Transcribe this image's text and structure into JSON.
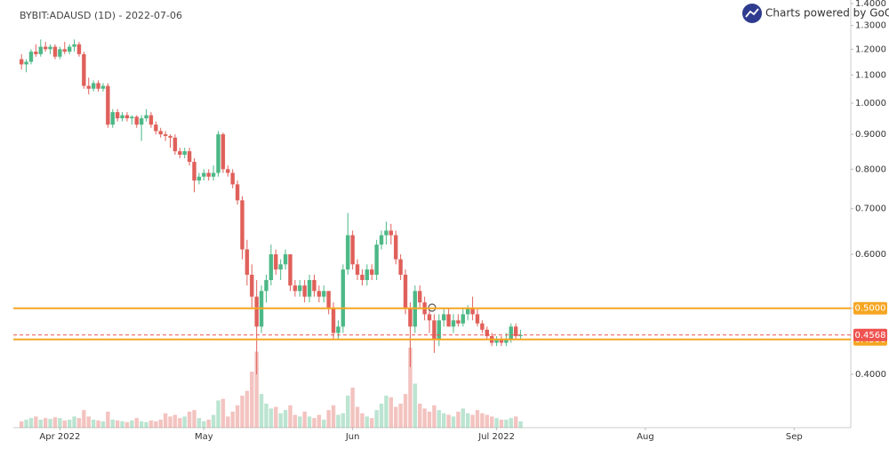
{
  "chart_data": {
    "type": "candlestick",
    "title": "BYBIT:ADAUSD (1D) - 2022-07-06",
    "credit": "Charts powered by GoCharting",
    "log_scale": true,
    "up_color": "#4cb886",
    "down_color": "#e0605a",
    "ylim": [
      0.334,
      1.417
    ],
    "yticks": [
      {
        "value": 0.4,
        "label": "0.4000"
      },
      {
        "value": 0.5,
        "label": "0.5000"
      },
      {
        "value": 0.6,
        "label": "0.6000"
      },
      {
        "value": 0.7,
        "label": "0.7000"
      },
      {
        "value": 0.8,
        "label": "0.8000"
      },
      {
        "value": 0.9,
        "label": "0.9000"
      },
      {
        "value": 1,
        "label": "1.0000"
      },
      {
        "value": 1.1,
        "label": "1.1000"
      },
      {
        "value": 1.2,
        "label": "1.2000"
      },
      {
        "value": 1.3,
        "label": "1.3000"
      },
      {
        "value": 1.4,
        "label": "1.4000"
      }
    ],
    "xlim": [
      -1.7,
      172.8
    ],
    "xticks": [
      {
        "value": 8,
        "label": "Apr 2022"
      },
      {
        "value": 38,
        "label": "May"
      },
      {
        "value": 69,
        "label": "Jun"
      },
      {
        "value": 99,
        "label": "Jul 2022"
      },
      {
        "value": 130,
        "label": "Aug"
      },
      {
        "value": 161,
        "label": "Sep"
      }
    ],
    "levels": [
      {
        "value": 0.5,
        "label": "0.5000",
        "color": "#f5a623",
        "style": "solid"
      },
      {
        "value": 0.45,
        "label": "0.4500",
        "color": "#f5a623",
        "style": "solid"
      },
      {
        "value": 0.4568,
        "label": "0.4568",
        "color": "#ef5350",
        "style": "dashed"
      }
    ],
    "candles": [
      [
        1.16,
        1.18,
        1.12,
        1.14
      ],
      [
        1.14,
        1.16,
        1.11,
        1.15
      ],
      [
        1.15,
        1.2,
        1.14,
        1.19
      ],
      [
        1.19,
        1.22,
        1.17,
        1.18
      ],
      [
        1.18,
        1.24,
        1.17,
        1.21
      ],
      [
        1.21,
        1.23,
        1.19,
        1.2
      ],
      [
        1.2,
        1.22,
        1.18,
        1.21
      ],
      [
        1.21,
        1.22,
        1.16,
        1.17
      ],
      [
        1.17,
        1.21,
        1.16,
        1.2
      ],
      [
        1.2,
        1.23,
        1.18,
        1.19
      ],
      [
        1.19,
        1.22,
        1.18,
        1.21
      ],
      [
        1.21,
        1.24,
        1.19,
        1.22
      ],
      [
        1.22,
        1.23,
        1.17,
        1.18
      ],
      [
        1.18,
        1.19,
        1.05,
        1.06
      ],
      [
        1.06,
        1.09,
        1.03,
        1.05
      ],
      [
        1.05,
        1.08,
        1.04,
        1.07
      ],
      [
        1.07,
        1.08,
        1.04,
        1.05
      ],
      [
        1.05,
        1.07,
        1.04,
        1.06
      ],
      [
        1.06,
        1.07,
        0.92,
        0.93
      ],
      [
        0.93,
        0.98,
        0.92,
        0.97
      ],
      [
        0.97,
        0.98,
        0.94,
        0.95
      ],
      [
        0.95,
        0.97,
        0.94,
        0.96
      ],
      [
        0.96,
        0.97,
        0.94,
        0.95
      ],
      [
        0.95,
        0.96,
        0.93,
        0.955
      ],
      [
        0.955,
        0.96,
        0.92,
        0.93
      ],
      [
        0.93,
        0.96,
        0.88,
        0.95
      ],
      [
        0.95,
        0.98,
        0.94,
        0.96
      ],
      [
        0.96,
        0.97,
        0.92,
        0.93
      ],
      [
        0.93,
        0.94,
        0.9,
        0.91
      ],
      [
        0.91,
        0.92,
        0.89,
        0.9
      ],
      [
        0.9,
        0.91,
        0.88,
        0.895
      ],
      [
        0.895,
        0.9,
        0.86,
        0.89
      ],
      [
        0.89,
        0.9,
        0.84,
        0.85
      ],
      [
        0.85,
        0.86,
        0.83,
        0.84
      ],
      [
        0.84,
        0.86,
        0.83,
        0.85
      ],
      [
        0.85,
        0.86,
        0.81,
        0.82
      ],
      [
        0.82,
        0.83,
        0.74,
        0.77
      ],
      [
        0.77,
        0.79,
        0.76,
        0.78
      ],
      [
        0.78,
        0.8,
        0.77,
        0.79
      ],
      [
        0.79,
        0.8,
        0.77,
        0.78
      ],
      [
        0.78,
        0.81,
        0.77,
        0.79
      ],
      [
        0.79,
        0.91,
        0.78,
        0.9
      ],
      [
        0.9,
        0.905,
        0.79,
        0.8
      ],
      [
        0.8,
        0.81,
        0.78,
        0.79
      ],
      [
        0.79,
        0.8,
        0.75,
        0.76
      ],
      [
        0.76,
        0.77,
        0.71,
        0.72
      ],
      [
        0.72,
        0.73,
        0.59,
        0.61
      ],
      [
        0.61,
        0.63,
        0.54,
        0.56
      ],
      [
        0.56,
        0.58,
        0.5,
        0.52
      ],
      [
        0.52,
        0.55,
        0.4,
        0.47
      ],
      [
        0.47,
        0.54,
        0.46,
        0.53
      ],
      [
        0.53,
        0.56,
        0.51,
        0.55
      ],
      [
        0.55,
        0.62,
        0.54,
        0.6
      ],
      [
        0.6,
        0.61,
        0.56,
        0.57
      ],
      [
        0.57,
        0.59,
        0.55,
        0.58
      ],
      [
        0.58,
        0.61,
        0.57,
        0.6
      ],
      [
        0.6,
        0.6,
        0.53,
        0.54
      ],
      [
        0.54,
        0.55,
        0.52,
        0.53
      ],
      [
        0.53,
        0.55,
        0.52,
        0.54
      ],
      [
        0.54,
        0.55,
        0.51,
        0.52
      ],
      [
        0.52,
        0.56,
        0.51,
        0.55
      ],
      [
        0.55,
        0.56,
        0.52,
        0.53
      ],
      [
        0.53,
        0.54,
        0.51,
        0.52
      ],
      [
        0.52,
        0.54,
        0.51,
        0.53
      ],
      [
        0.53,
        0.53,
        0.49,
        0.5
      ],
      [
        0.5,
        0.51,
        0.45,
        0.46
      ],
      [
        0.46,
        0.48,
        0.45,
        0.47
      ],
      [
        0.47,
        0.58,
        0.46,
        0.57
      ],
      [
        0.57,
        0.69,
        0.56,
        0.64
      ],
      [
        0.64,
        0.65,
        0.57,
        0.58
      ],
      [
        0.58,
        0.59,
        0.55,
        0.56
      ],
      [
        0.56,
        0.57,
        0.54,
        0.55
      ],
      [
        0.55,
        0.58,
        0.54,
        0.57
      ],
      [
        0.57,
        0.58,
        0.55,
        0.56
      ],
      [
        0.56,
        0.63,
        0.55,
        0.62
      ],
      [
        0.62,
        0.65,
        0.61,
        0.64
      ],
      [
        0.64,
        0.67,
        0.62,
        0.65
      ],
      [
        0.65,
        0.665,
        0.62,
        0.64
      ],
      [
        0.64,
        0.65,
        0.58,
        0.59
      ],
      [
        0.59,
        0.6,
        0.55,
        0.56
      ],
      [
        0.56,
        0.57,
        0.49,
        0.5
      ],
      [
        0.5,
        0.51,
        0.41,
        0.47
      ],
      [
        0.47,
        0.54,
        0.46,
        0.53
      ],
      [
        0.53,
        0.54,
        0.5,
        0.51
      ],
      [
        0.51,
        0.52,
        0.48,
        0.49
      ],
      [
        0.49,
        0.5,
        0.46,
        0.48
      ],
      [
        0.48,
        0.49,
        0.43,
        0.45
      ],
      [
        0.45,
        0.49,
        0.44,
        0.48
      ],
      [
        0.48,
        0.5,
        0.47,
        0.49
      ],
      [
        0.49,
        0.5,
        0.47,
        0.47
      ],
      [
        0.47,
        0.49,
        0.46,
        0.48
      ],
      [
        0.48,
        0.49,
        0.47,
        0.475
      ],
      [
        0.475,
        0.5,
        0.47,
        0.49
      ],
      [
        0.49,
        0.505,
        0.48,
        0.5
      ],
      [
        0.5,
        0.52,
        0.48,
        0.49
      ],
      [
        0.49,
        0.5,
        0.47,
        0.475
      ],
      [
        0.475,
        0.48,
        0.46,
        0.465
      ],
      [
        0.465,
        0.47,
        0.45,
        0.455
      ],
      [
        0.455,
        0.46,
        0.44,
        0.445
      ],
      [
        0.445,
        0.455,
        0.44,
        0.45
      ],
      [
        0.45,
        0.455,
        0.44,
        0.445
      ],
      [
        0.445,
        0.46,
        0.44,
        0.45
      ],
      [
        0.45,
        0.475,
        0.445,
        0.47
      ],
      [
        0.47,
        0.475,
        0.45,
        0.455
      ],
      [
        0.455,
        0.465,
        0.45,
        0.4568
      ]
    ],
    "volume": [
      8,
      10,
      12,
      14,
      10,
      12,
      11,
      13,
      12,
      9,
      10,
      14,
      12,
      22,
      14,
      10,
      9,
      8,
      20,
      10,
      9,
      8,
      7,
      9,
      12,
      8,
      7,
      9,
      8,
      10,
      18,
      14,
      16,
      12,
      14,
      20,
      22,
      12,
      8,
      10,
      16,
      34,
      36,
      14,
      20,
      28,
      40,
      46,
      70,
      95,
      42,
      30,
      24,
      26,
      18,
      22,
      28,
      16,
      14,
      20,
      14,
      12,
      16,
      10,
      22,
      28,
      16,
      18,
      40,
      50,
      26,
      18,
      14,
      12,
      22,
      30,
      40,
      38,
      26,
      30,
      42,
      100,
      55,
      30,
      24,
      20,
      28,
      22,
      18,
      16,
      14,
      20,
      24,
      18,
      16,
      22,
      18,
      16,
      14,
      12,
      10,
      10,
      12,
      14,
      8
    ]
  }
}
